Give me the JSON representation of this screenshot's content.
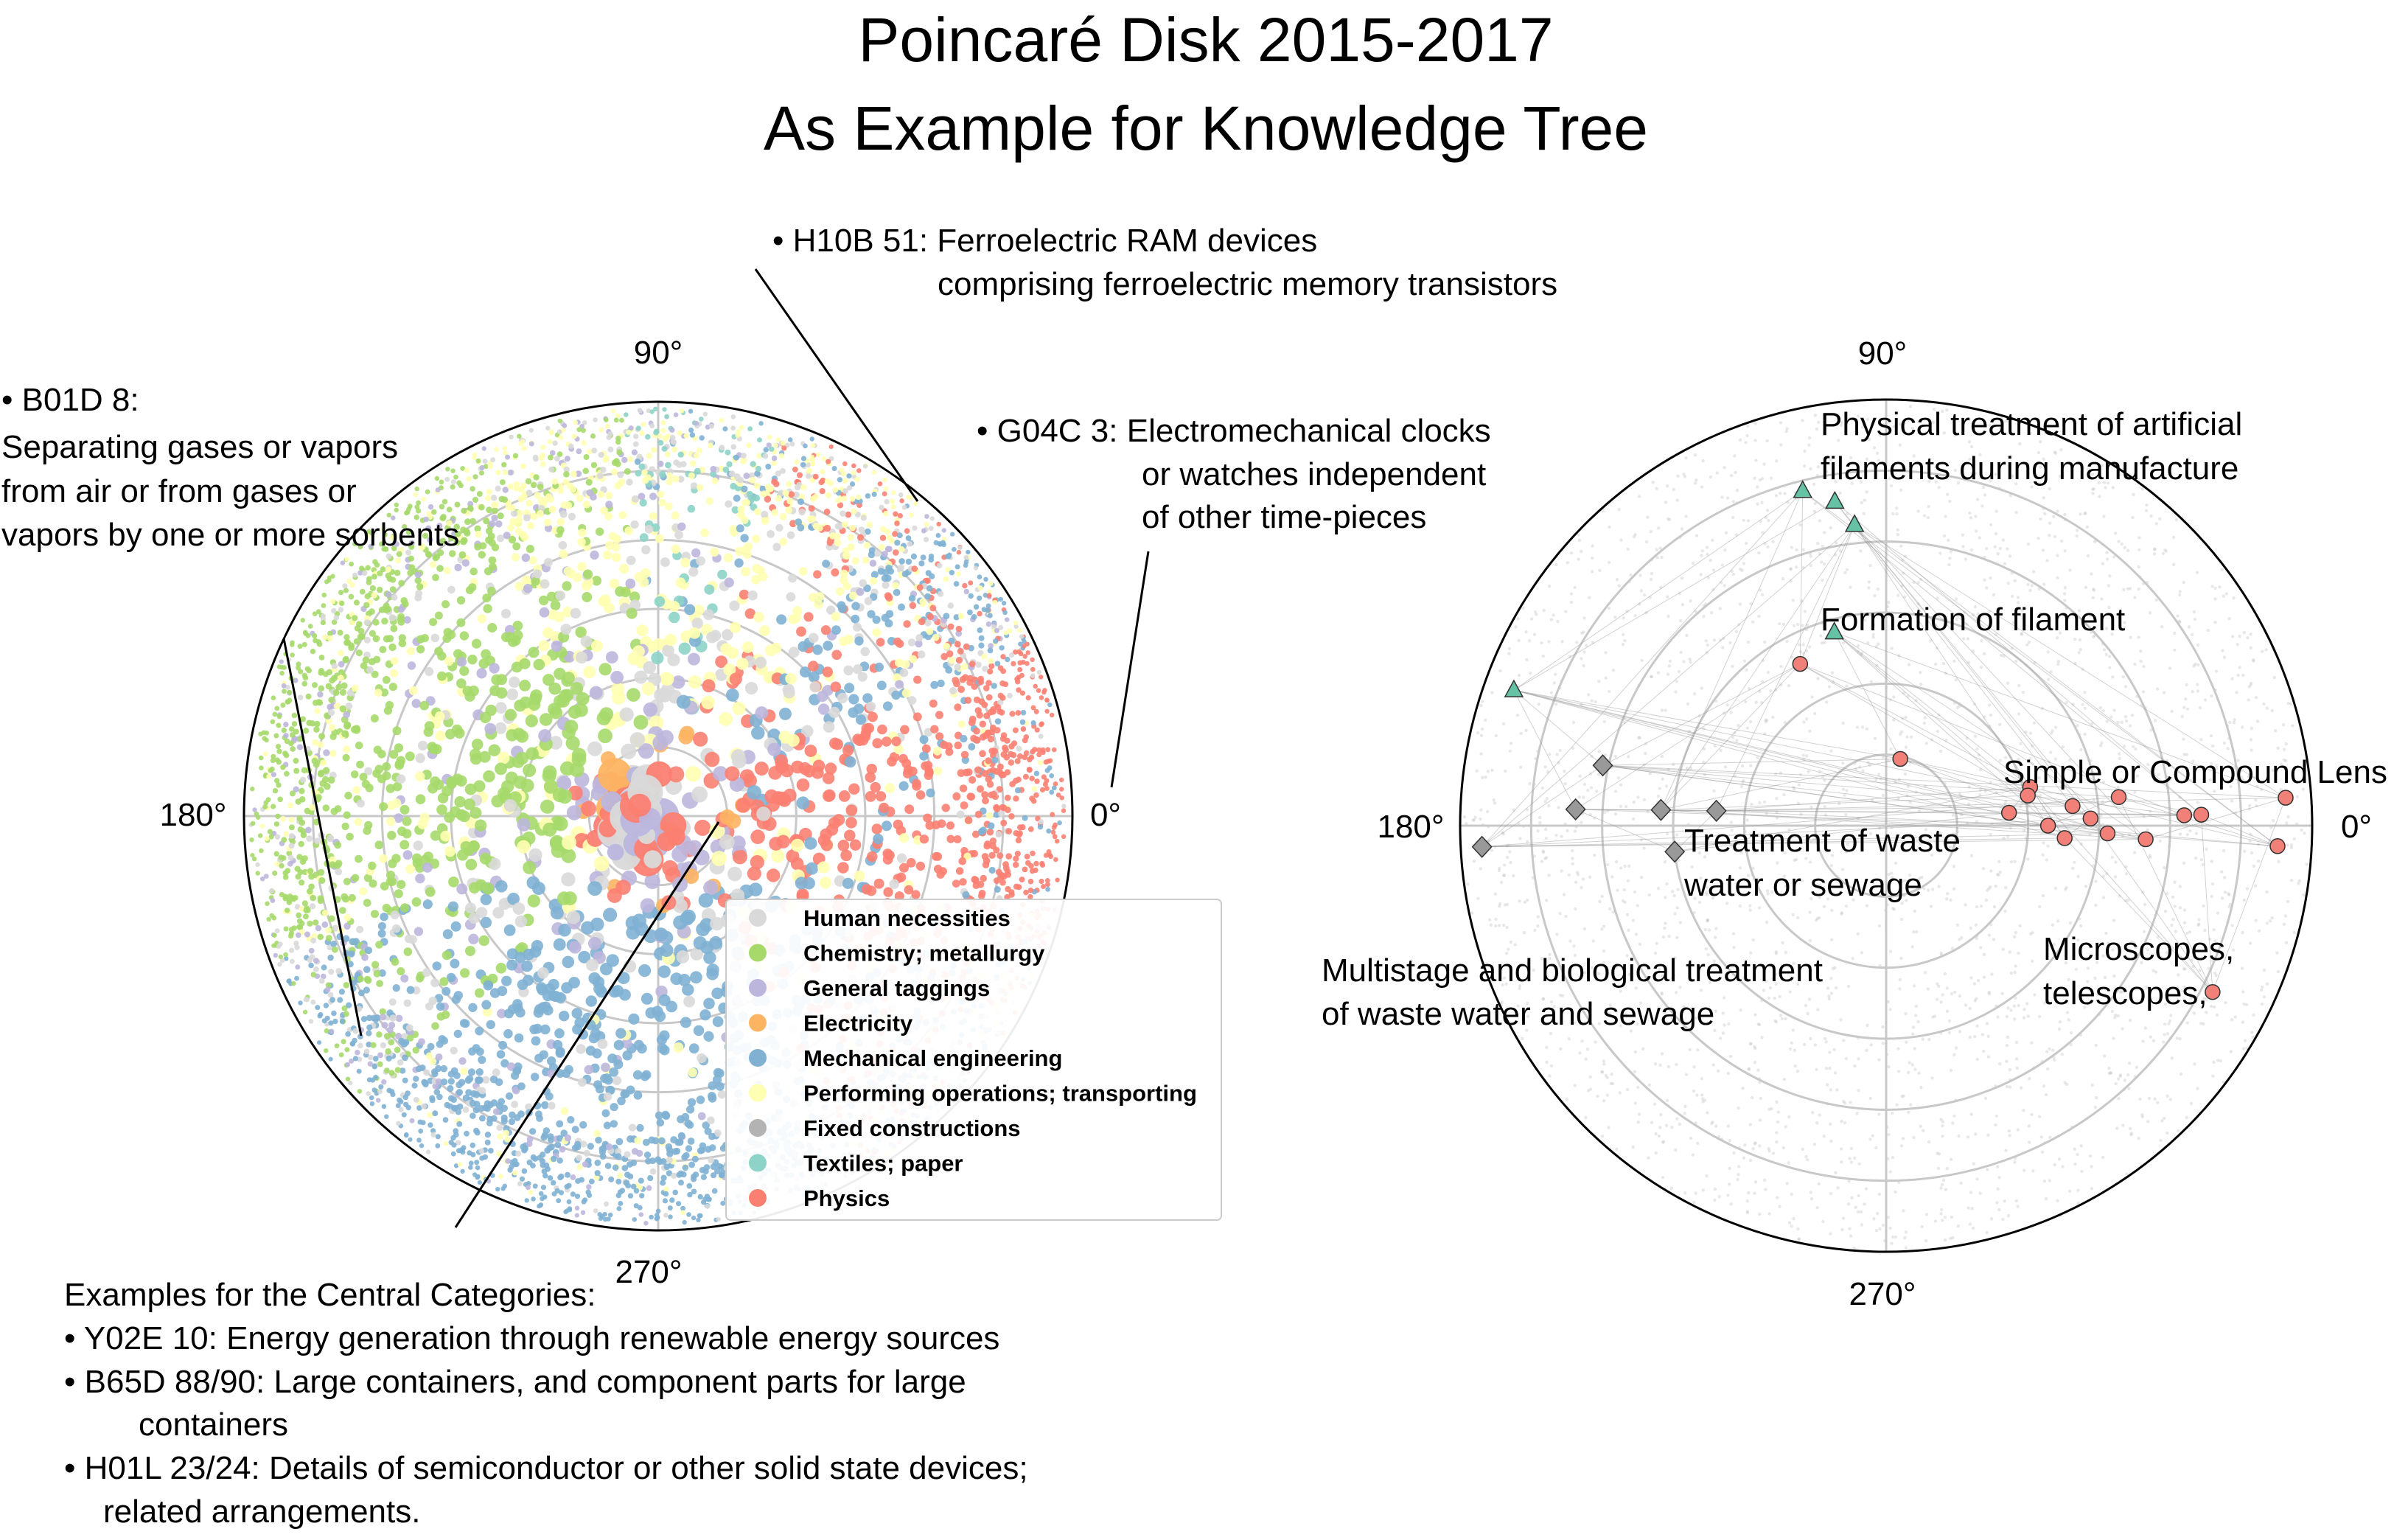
{
  "title_line1": "Poincaré Disk 2015-2017",
  "title_line2": "As Example for Knowledge Tree",
  "chart_data": [
    {
      "type": "scatter",
      "subtype": "polar (Poincaré disk)",
      "angle_labels": [
        "90°",
        "180°",
        "0°",
        "270°"
      ],
      "grid": true,
      "legend_placement": "bottom-right",
      "series": [
        {
          "name": "Human necessities",
          "color": "#d9d9d9"
        },
        {
          "name": "Chemistry; metallurgy",
          "color": "#a6d96a"
        },
        {
          "name": "General taggings",
          "color": "#bcb6dd"
        },
        {
          "name": "Electricity",
          "color": "#fdb462"
        },
        {
          "name": "Mechanical engineering",
          "color": "#80b1d3"
        },
        {
          "name": "Performing operations; transporting",
          "color": "#ffffb3"
        },
        {
          "name": "Fixed constructions",
          "color": "#b3b3b3"
        },
        {
          "name": "Textiles; paper",
          "color": "#8dd3c7"
        },
        {
          "name": "Physics",
          "color": "#fb8072"
        }
      ],
      "annotations": [
        {
          "lines": [
            "• H10B 51: Ferroelectric RAM devices",
            "comprising ferroelectric memory transistors"
          ]
        },
        {
          "lines": [
            "• G04C 3: Electromechanical clocks",
            "or watches  independent",
            "of other time-pieces"
          ]
        },
        {
          "lines": [
            "• B01D 8:",
            "Separating gases or vapors",
            "from air or from gases or",
            "vapors by one or more sorbents"
          ]
        },
        {
          "lines": [
            "Examples for the Central Categories:",
            "• Y02E 10: Energy generation through renewable energy sources",
            "• B65D 88/90: Large containers, and component parts for large",
            "containers",
            "• H01L 23/24: Details of semiconductor or other solid state devices;",
            "related arrangements."
          ]
        }
      ]
    },
    {
      "type": "scatter",
      "subtype": "polar (Poincaré disk) with hierarchy links",
      "angle_labels": [
        "90°",
        "180°",
        "0°",
        "270°"
      ],
      "grid": true,
      "series": [
        {
          "marker": "triangle",
          "color": "#66c2a5",
          "points": [
            [
              0.81,
              104
            ],
            [
              0.77,
              99
            ],
            [
              0.71,
              96
            ],
            [
              0.47,
              105
            ],
            [
              0.93,
              160
            ]
          ]
        },
        {
          "marker": "diamond",
          "color": "#999999",
          "points": [
            [
              0.68,
              168
            ],
            [
              0.53,
              176
            ],
            [
              0.4,
              175
            ],
            [
              0.73,
              177
            ],
            [
              0.95,
              183
            ],
            [
              0.5,
              187
            ]
          ]
        },
        {
          "marker": "circle",
          "color": "#f08078",
          "points": [
            [
              0.43,
              118
            ],
            [
              0.16,
              78
            ],
            [
              0.35,
              15
            ],
            [
              0.34,
              12
            ],
            [
              0.29,
              6
            ],
            [
              0.44,
              6
            ],
            [
              0.55,
              7
            ],
            [
              0.48,
              2
            ],
            [
              0.94,
              4
            ],
            [
              0.38,
              0
            ],
            [
              0.52,
              358
            ],
            [
              0.7,
              2
            ],
            [
              0.74,
              2
            ],
            [
              0.42,
              356
            ],
            [
              0.61,
              357
            ],
            [
              0.92,
              357
            ],
            [
              0.86,
              333
            ]
          ]
        }
      ],
      "annotations": [
        "Physical treatment of artificial",
        "filaments during manufacture",
        "Formation of filament",
        "Simple or Compound Lens",
        "Treatment of waste",
        "water or sewage",
        "Multistage and biological treatment",
        "of waste water and sewage",
        "Microscopes,",
        "telescopes,"
      ]
    }
  ]
}
